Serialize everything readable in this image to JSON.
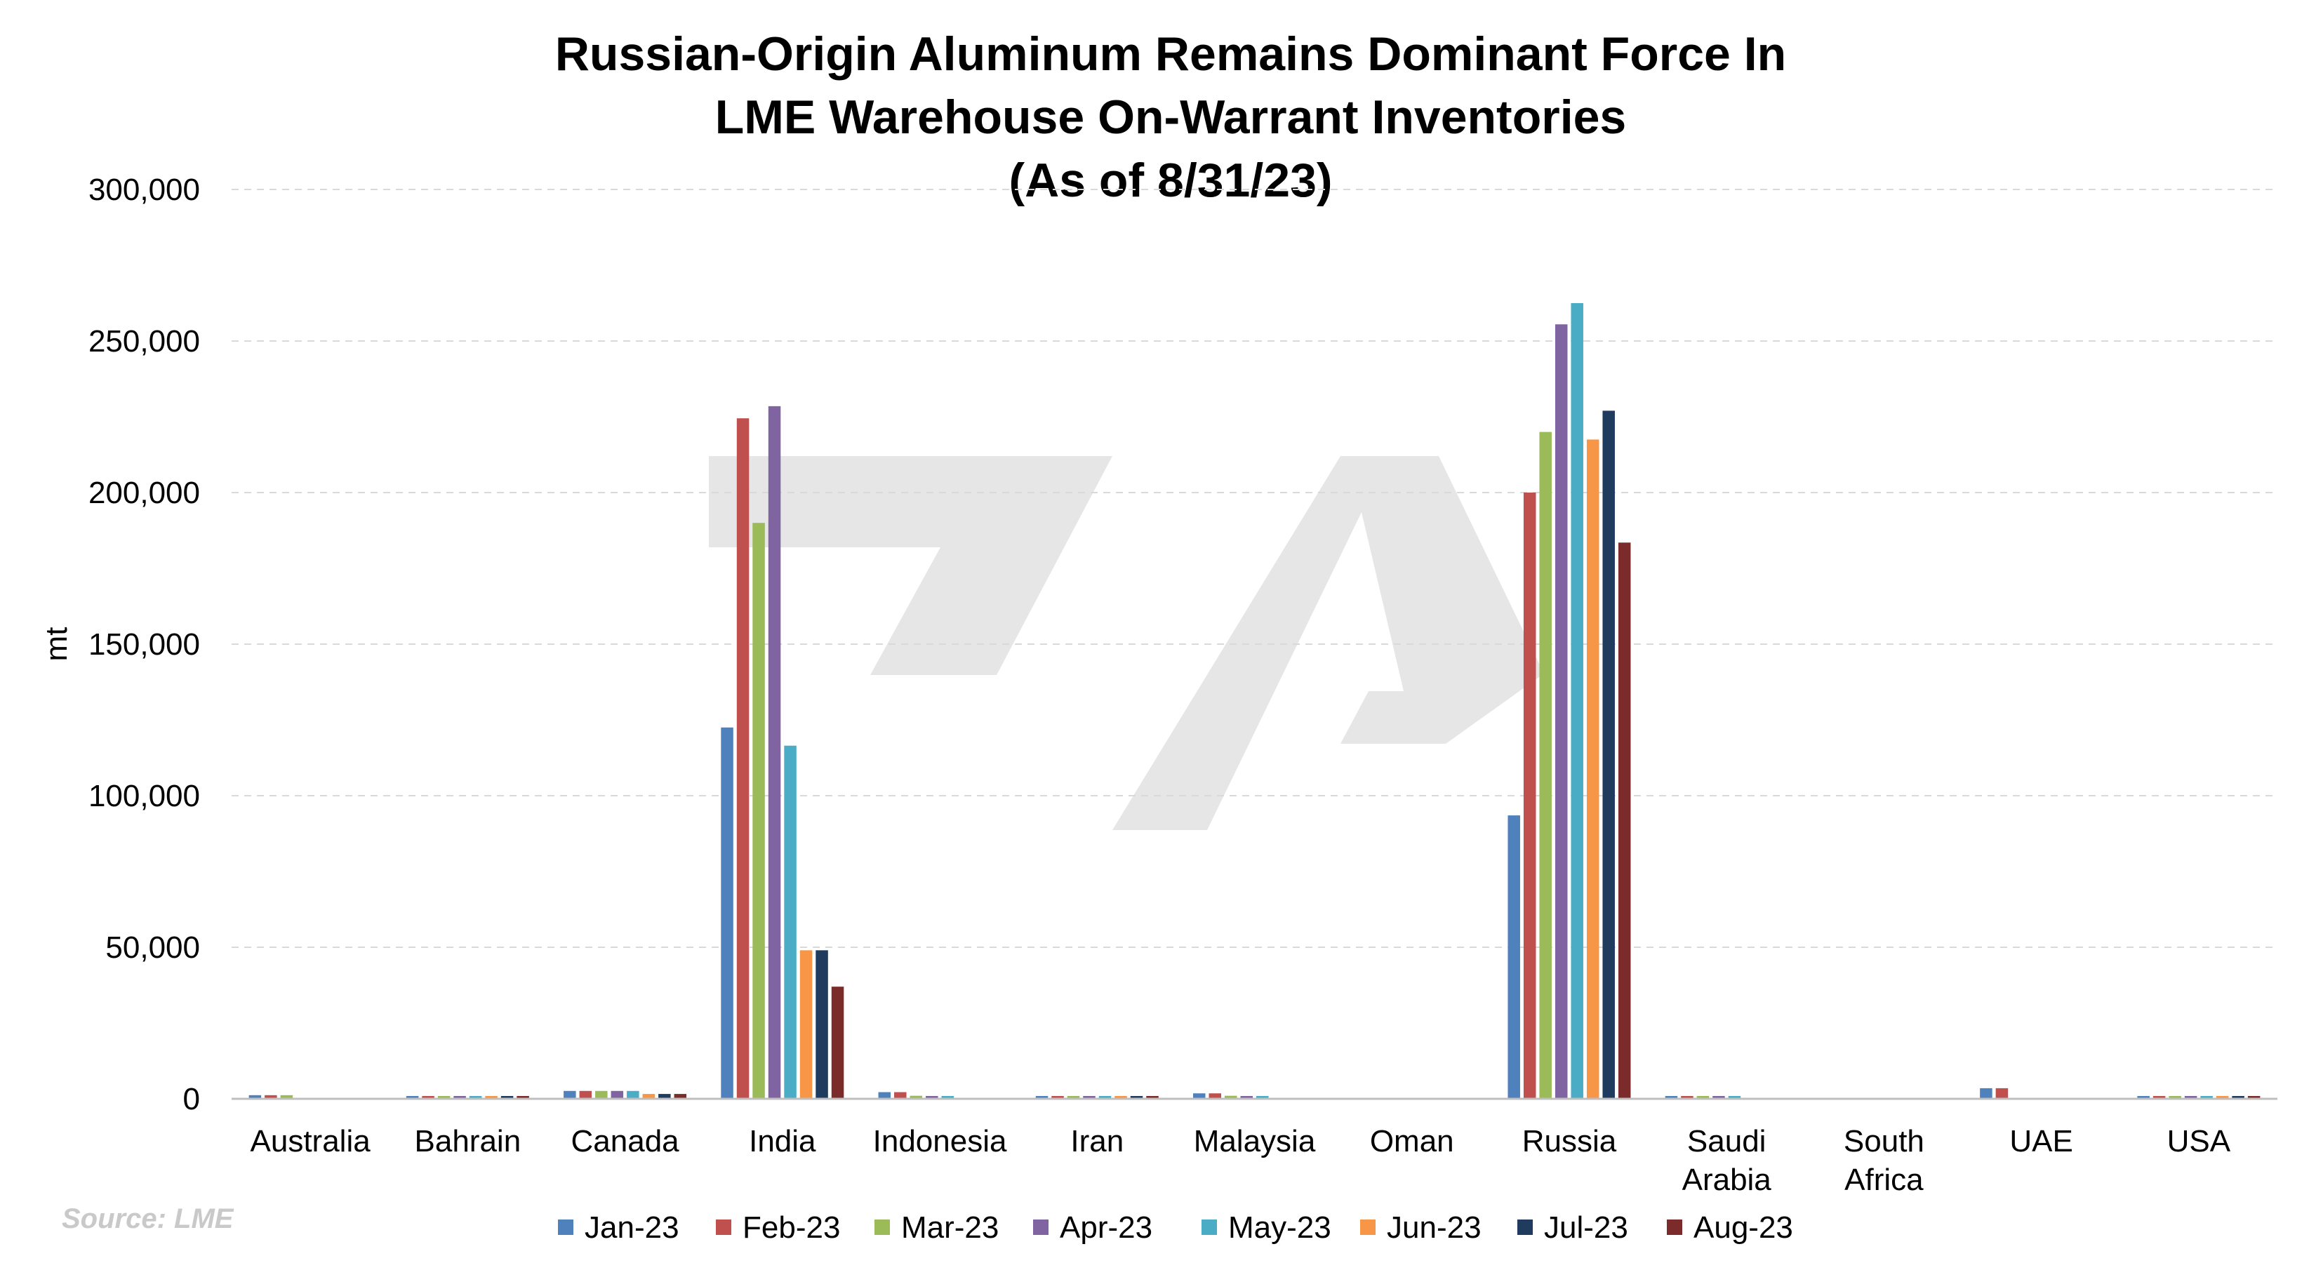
{
  "chart_data": {
    "type": "bar",
    "title_lines": [
      "Russian-Origin Aluminum Remains Dominant Force In",
      "LME Warehouse On-Warrant Inventories",
      "(As of 8/31/23)"
    ],
    "ylabel": "mt",
    "xlabel": "",
    "ylim": [
      0,
      300000
    ],
    "yticks": [
      0,
      50000,
      100000,
      150000,
      200000,
      250000,
      300000
    ],
    "ytick_labels": [
      "0",
      "50,000",
      "100,000",
      "150,000",
      "200,000",
      "250,000",
      "300,000"
    ],
    "grid": true,
    "legend_position": "bottom",
    "categories": [
      [
        "Australia"
      ],
      [
        "Bahrain"
      ],
      [
        "Canada"
      ],
      [
        "India"
      ],
      [
        "Indonesia"
      ],
      [
        "Iran"
      ],
      [
        "Malaysia"
      ],
      [
        "Oman"
      ],
      [
        "Russia"
      ],
      [
        "Saudi",
        "Arabia"
      ],
      [
        "South",
        "Africa"
      ],
      [
        "UAE"
      ],
      [
        "USA"
      ]
    ],
    "series": [
      {
        "name": "Jan-23",
        "color": "#4f81bd",
        "values": [
          1200,
          900,
          2600,
          122500,
          2200,
          250,
          1800,
          0,
          93500,
          300,
          0,
          3500,
          900
        ]
      },
      {
        "name": "Feb-23",
        "color": "#c0504d",
        "values": [
          1200,
          900,
          2600,
          224500,
          2200,
          250,
          1800,
          0,
          200000,
          300,
          0,
          3500,
          900
        ]
      },
      {
        "name": "Mar-23",
        "color": "#9bbb59",
        "values": [
          1200,
          900,
          2600,
          190000,
          1000,
          250,
          1000,
          0,
          220000,
          300,
          0,
          0,
          900
        ]
      },
      {
        "name": "Apr-23",
        "color": "#8064a2",
        "values": [
          0,
          900,
          2600,
          228500,
          700,
          250,
          500,
          0,
          255500,
          300,
          0,
          0,
          900
        ]
      },
      {
        "name": "May-23",
        "color": "#4bacc6",
        "values": [
          0,
          900,
          2600,
          116500,
          700,
          250,
          300,
          0,
          262500,
          300,
          0,
          0,
          900
        ]
      },
      {
        "name": "Jun-23",
        "color": "#f79646",
        "values": [
          0,
          900,
          1600,
          49000,
          0,
          250,
          0,
          0,
          217500,
          0,
          0,
          0,
          900
        ]
      },
      {
        "name": "Jul-23",
        "color": "#1f3b5e",
        "values": [
          0,
          900,
          1600,
          49000,
          0,
          250,
          0,
          0,
          227000,
          0,
          0,
          0,
          900
        ]
      },
      {
        "name": "Aug-23",
        "color": "#7b2c2a",
        "values": [
          0,
          900,
          1600,
          37000,
          0,
          250,
          0,
          0,
          183500,
          0,
          0,
          0,
          900
        ]
      }
    ],
    "source": "Source: LME"
  }
}
